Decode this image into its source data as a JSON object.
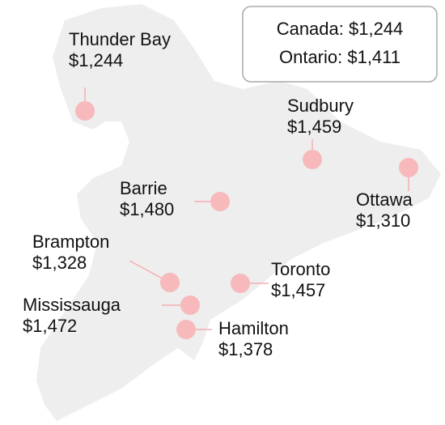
{
  "legend": {
    "lines": [
      "Canada: $1,244",
      "Ontario: $1,411"
    ]
  },
  "cities": [
    {
      "name": "Thunder Bay",
      "value": "$1,244"
    },
    {
      "name": "Sudbury",
      "value": "$1,459"
    },
    {
      "name": "Ottawa",
      "value": "$1,310"
    },
    {
      "name": "Barrie",
      "value": "$1,480"
    },
    {
      "name": "Brampton",
      "value": "$1,328"
    },
    {
      "name": "Toronto",
      "value": "$1,457"
    },
    {
      "name": "Mississauga",
      "value": "$1,472"
    },
    {
      "name": "Hamilton",
      "value": "$1,378"
    }
  ]
}
